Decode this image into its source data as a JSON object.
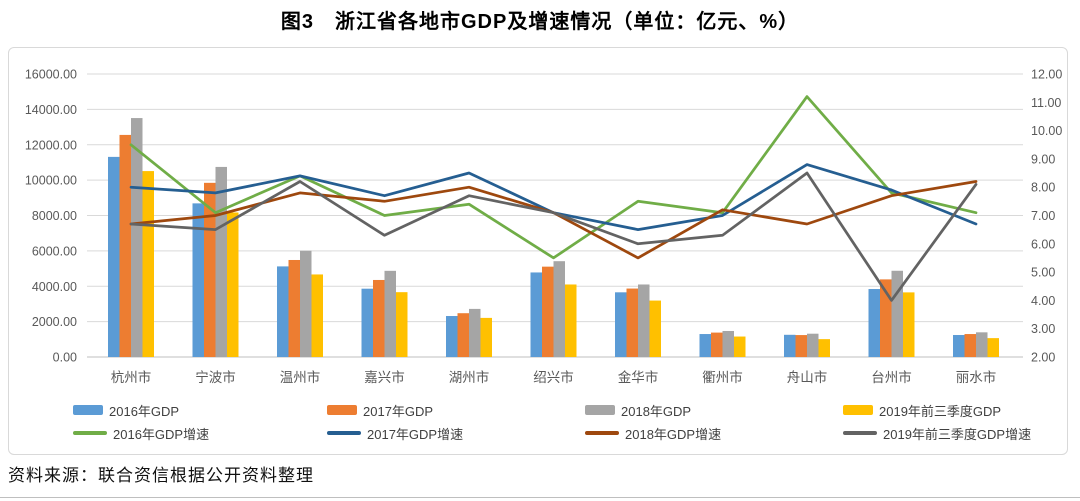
{
  "title": "图3　浙江省各地市GDP及增速情况（单位：亿元、%）",
  "source": "资料来源：联合资信根据公开资料整理",
  "palette": {
    "grid_color": "#d9d9d9",
    "axis_line_color": "#bfbfbf",
    "axis_text_color": "#595959",
    "frame_border_color": "#d9d9d9"
  },
  "chart_data": {
    "type": "combo-bar-line",
    "title": "图3　浙江省各地市GDP及增速情况（单位：亿元、%）",
    "grid": "on",
    "legend_position": "bottom",
    "categories": [
      "杭州市",
      "宁波市",
      "温州市",
      "嘉兴市",
      "湖州市",
      "绍兴市",
      "金华市",
      "衢州市",
      "舟山市",
      "台州市",
      "丽水市"
    ],
    "axis_left": {
      "min": 0,
      "max": 16000,
      "step": 2000,
      "decimals": 2,
      "unit": "亿元"
    },
    "axis_right": {
      "min": 2,
      "max": 12,
      "step": 1,
      "decimals": 2,
      "unit": "%"
    },
    "bar_series": [
      {
        "name": "2016年GDP",
        "color": "#5b9bd5",
        "values": [
          11314,
          8686,
          5122,
          3862,
          2317,
          4780,
          3657,
          1298,
          1255,
          3843,
          1243
        ]
      },
      {
        "name": "2017年GDP",
        "color": "#ed7d31",
        "values": [
          12556,
          9847,
          5485,
          4355,
          2476,
          5108,
          3870,
          1380,
          1240,
          4388,
          1298
        ]
      },
      {
        "name": "2018年GDP",
        "color": "#a5a5a5",
        "values": [
          13509,
          10746,
          6006,
          4872,
          2719,
          5417,
          4100,
          1471,
          1317,
          4875,
          1395
        ]
      },
      {
        "name": "2019年前三季度GDP",
        "color": "#ffc000",
        "values": [
          10511,
          8170,
          4667,
          3665,
          2211,
          4100,
          3190,
          1157,
          1010,
          3653,
          1067
        ]
      }
    ],
    "line_series": [
      {
        "name": "2016年GDP增速",
        "color": "#70ad47",
        "values": [
          9.5,
          7.1,
          8.4,
          7.0,
          7.4,
          5.5,
          7.5,
          7.1,
          11.2,
          7.8,
          7.1
        ]
      },
      {
        "name": "2017年GDP增速",
        "color": "#255e91",
        "values": [
          8.0,
          7.8,
          8.4,
          7.7,
          8.5,
          7.1,
          6.5,
          7.0,
          8.8,
          7.9,
          6.7
        ]
      },
      {
        "name": "2018年GDP增速",
        "color": "#9e480e",
        "values": [
          6.7,
          7.0,
          7.8,
          7.5,
          8.0,
          7.1,
          5.5,
          7.2,
          6.7,
          7.7,
          8.2
        ]
      },
      {
        "name": "2019年前三季度GDP增速",
        "color": "#636363",
        "values": [
          6.7,
          6.5,
          8.2,
          6.3,
          7.7,
          7.1,
          6.0,
          6.3,
          8.5,
          4.0,
          8.1
        ]
      }
    ]
  }
}
